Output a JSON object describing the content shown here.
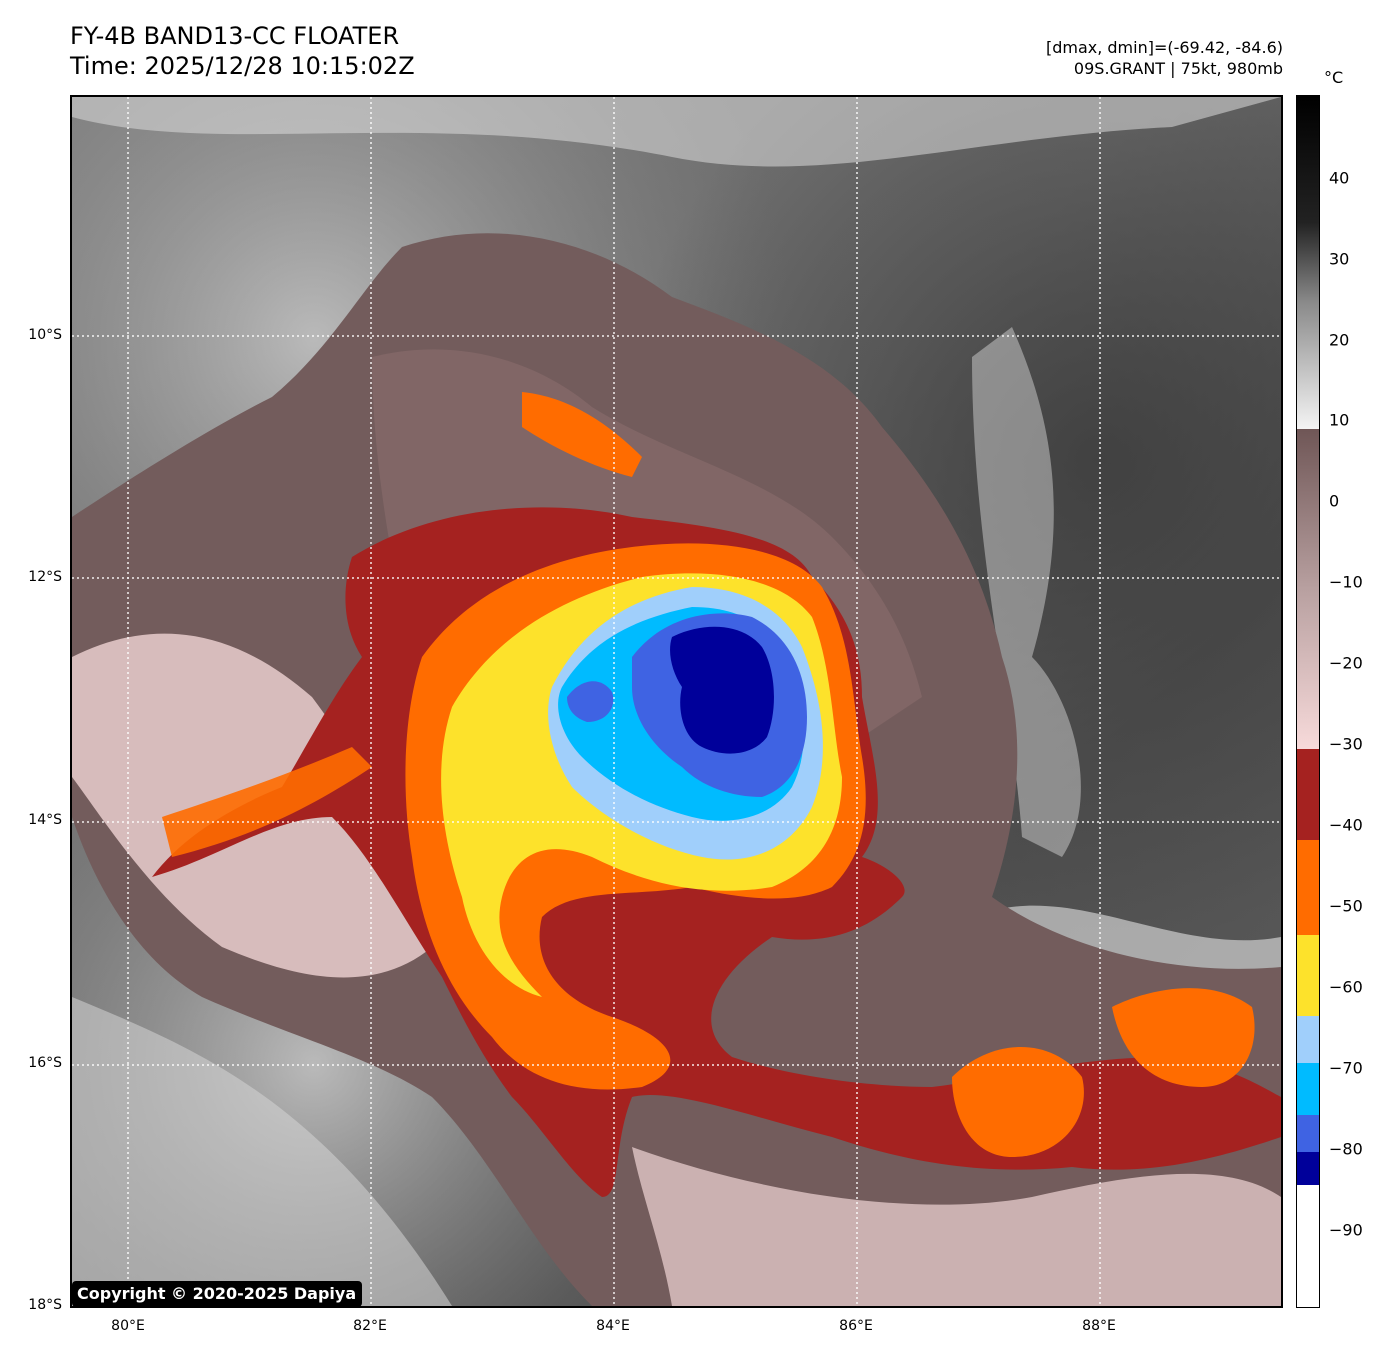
{
  "header": {
    "title_line1": "FY-4B BAND13-CC FLOATER",
    "title_line2": "Time: 2025/12/28 10:15:02Z",
    "range_text": "[dmax, dmin]=(-69.42, -84.6)",
    "storm_text": "09S.GRANT | 75kt, 980mb"
  },
  "colorbar": {
    "unit": "°C",
    "ticks": [
      "40",
      "30",
      "20",
      "10",
      "0",
      "−10",
      "−20",
      "−30",
      "−40",
      "−50",
      "−60",
      "−70",
      "−80",
      "−90"
    ],
    "colors": {
      "warm_top": "#000000",
      "gray_mid": "#8a8a8a",
      "gray_light": "#f4f4f4",
      "brown": "#6f5656",
      "pink_light": "#f7dada",
      "dark_red": "#a52220",
      "orange": "#ff6c00",
      "yellow": "#fde22b",
      "light_blue": "#a0cffb",
      "cyan": "#00bbff",
      "royal_blue": "#3f63e3",
      "navy": "#00009a",
      "white": "#ffffff"
    }
  },
  "map": {
    "lat_labels": [
      "10°S",
      "12°S",
      "14°S",
      "16°S",
      "18°S"
    ],
    "lon_labels": [
      "80°E",
      "82°E",
      "84°E",
      "86°E",
      "88°E"
    ],
    "copyright": "Copyright © 2020-2025 Dapiya"
  }
}
